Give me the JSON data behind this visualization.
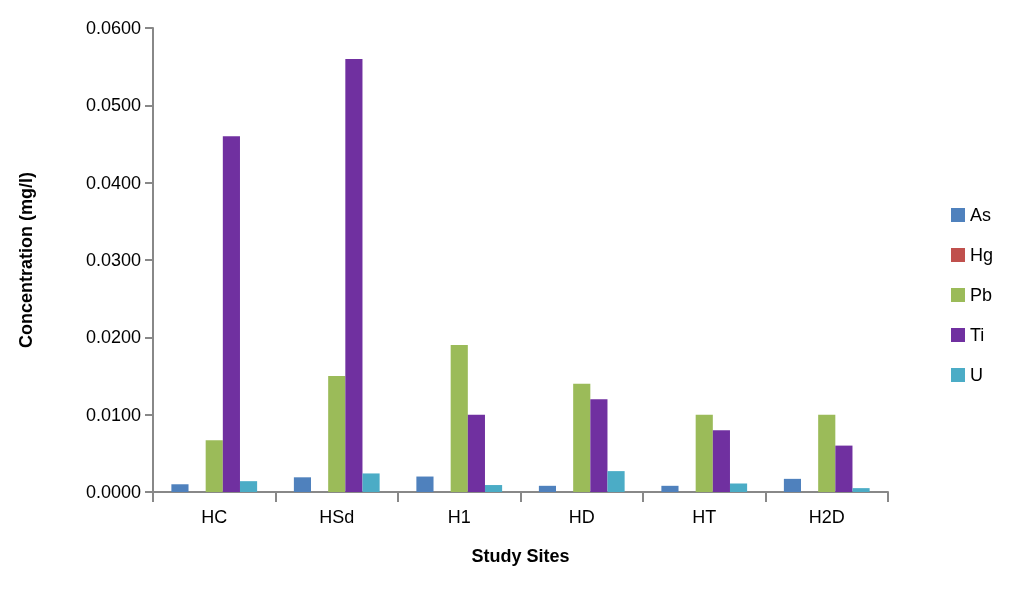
{
  "chart_data": {
    "type": "bar",
    "xlabel": "Study Sites",
    "ylabel": "Concentration (mg/l)",
    "categories": [
      "HC",
      "HSd",
      "H1",
      "HD",
      "HT",
      "H2D"
    ],
    "series": [
      {
        "name": "As",
        "color": "#4f81bd",
        "values": [
          0.001,
          0.0019,
          0.002,
          0.0008,
          0.0008,
          0.0017
        ]
      },
      {
        "name": "Hg",
        "color": "#c0504d",
        "values": [
          0,
          0,
          0,
          0,
          0,
          0
        ]
      },
      {
        "name": "Pb",
        "color": "#9bbb59",
        "values": [
          0.0067,
          0.015,
          0.019,
          0.014,
          0.01,
          0.01
        ]
      },
      {
        "name": "Ti",
        "color": "#7030a0",
        "values": [
          0.046,
          0.056,
          0.01,
          0.012,
          0.008,
          0.006
        ]
      },
      {
        "name": "U",
        "color": "#4bacc6",
        "values": [
          0.0014,
          0.0024,
          0.0009,
          0.0027,
          0.0011,
          0.0005
        ]
      }
    ],
    "ylim": [
      0,
      0.06
    ],
    "yticks": [
      {
        "value": 0,
        "label": "0.0000"
      },
      {
        "value": 0.01,
        "label": "0.0100"
      },
      {
        "value": 0.02,
        "label": "0.0200"
      },
      {
        "value": 0.03,
        "label": "0.0300"
      },
      {
        "value": 0.04,
        "label": "0.0400"
      },
      {
        "value": 0.05,
        "label": "0.0500"
      },
      {
        "value": 0.06,
        "label": "0.0600"
      }
    ],
    "grid": false,
    "legend": "right"
  }
}
